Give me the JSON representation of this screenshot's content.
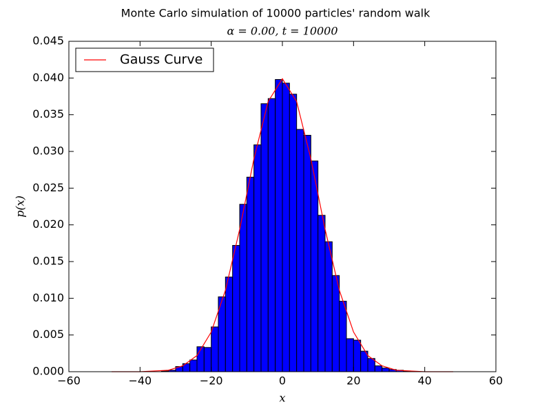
{
  "chart_data": {
    "type": "histogram",
    "title": "Monte Carlo simulation of 10000 particles' random walk",
    "subtitle": "α = 0.00, t = 10000",
    "xlabel": "x",
    "ylabel": "p(x)",
    "bins": [
      -36,
      -34,
      -32,
      -30,
      -28,
      -26,
      -24,
      -22,
      -20,
      -18,
      -16,
      -14,
      -12,
      -10,
      -8,
      -6,
      -4,
      -2,
      0,
      2,
      4,
      6,
      8,
      10,
      12,
      14,
      16,
      18,
      20,
      22,
      24,
      26,
      28,
      30,
      32,
      34,
      36
    ],
    "values": [
      0,
      0.0001,
      0.0002,
      0.0007,
      0.0011,
      0.0016,
      0.0034,
      0.0033,
      0.0061,
      0.0102,
      0.0129,
      0.0172,
      0.0228,
      0.0265,
      0.0309,
      0.0365,
      0.0372,
      0.0398,
      0.0393,
      0.0378,
      0.033,
      0.0322,
      0.0287,
      0.0213,
      0.0177,
      0.0131,
      0.0096,
      0.0045,
      0.0043,
      0.0028,
      0.0018,
      0.0008,
      0.0005,
      0.0003,
      0.0002,
      0.0001
    ],
    "color": "#0000ff",
    "curve": {
      "type": "line",
      "name": "Gauss Curve",
      "color": "#ff0000",
      "x": [
        -48,
        -44,
        -40,
        -36,
        -32,
        -28,
        -24,
        -20,
        -16,
        -12,
        -8,
        -4,
        0,
        4,
        8,
        12,
        16,
        20,
        24,
        28,
        32,
        36,
        40,
        44,
        48
      ],
      "values": [
        0,
        0,
        0,
        0.0001,
        0.0002,
        0.0008,
        0.0022,
        0.0054,
        0.0111,
        0.0194,
        0.029,
        0.0368,
        0.0399,
        0.0368,
        0.029,
        0.0194,
        0.0111,
        0.0054,
        0.0022,
        0.0008,
        0.0002,
        0.0001,
        0,
        0,
        0
      ]
    },
    "xlim": [
      -60,
      60
    ],
    "xticks": [
      {
        "value": -60,
        "label": "−60"
      },
      {
        "value": -40,
        "label": "−40"
      },
      {
        "value": -20,
        "label": "−20"
      },
      0,
      20,
      40,
      60
    ],
    "ylim": [
      0,
      0.045
    ],
    "yticks": [
      {
        "value": 0,
        "label": "0.000"
      },
      {
        "value": 0.005,
        "label": "0.005"
      },
      {
        "value": 0.01,
        "label": "0.010"
      },
      {
        "value": 0.015,
        "label": "0.015"
      },
      {
        "value": 0.02,
        "label": "0.020"
      },
      {
        "value": 0.025,
        "label": "0.025"
      },
      {
        "value": 0.03,
        "label": "0.030"
      },
      {
        "value": 0.035,
        "label": "0.035"
      },
      {
        "value": 0.04,
        "label": "0.040"
      },
      {
        "value": 0.045,
        "label": "0.045"
      }
    ],
    "legend": "upper left"
  }
}
